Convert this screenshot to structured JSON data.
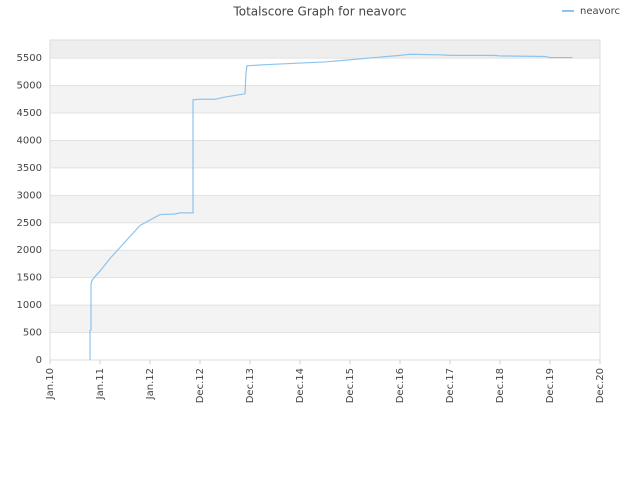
{
  "chart_data": {
    "type": "line",
    "title": "Totalscore Graph for neavorc",
    "series": [
      {
        "name": "neavorc",
        "color": "#8cc4ee",
        "x": [
          0.8,
          0.8,
          0.82,
          0.82,
          0.84,
          0.9,
          1.0,
          1.2,
          1.5,
          1.8,
          2.2,
          2.5,
          2.6,
          2.86,
          2.86,
          3.0,
          3.3,
          3.5,
          3.9,
          3.92,
          3.94,
          4.3,
          5.0,
          5.5,
          6.0,
          6.5,
          7.0,
          7.2,
          7.8,
          8.0,
          8.9,
          9.0,
          9.9,
          10.0,
          10.45
        ],
        "values": [
          0,
          530,
          550,
          1380,
          1450,
          1520,
          1620,
          1850,
          2150,
          2450,
          2650,
          2660,
          2680,
          2680,
          4740,
          4750,
          4750,
          4790,
          4850,
          5230,
          5360,
          5380,
          5410,
          5430,
          5470,
          5510,
          5550,
          5570,
          5560,
          5550,
          5550,
          5540,
          5530,
          5510,
          5510
        ]
      }
    ],
    "xlim": [
      0,
      11
    ],
    "xticks": [
      {
        "value": 0,
        "label": "Jan.10"
      },
      {
        "value": 1,
        "label": "Jan.11"
      },
      {
        "value": 2,
        "label": "Jan.12"
      },
      {
        "value": 3,
        "label": "Dec.12"
      },
      {
        "value": 4,
        "label": "Dec.13"
      },
      {
        "value": 5,
        "label": "Dec.14"
      },
      {
        "value": 6,
        "label": "Dec.15"
      },
      {
        "value": 7,
        "label": "Dec.16"
      },
      {
        "value": 8,
        "label": "Dec.17"
      },
      {
        "value": 9,
        "label": "Dec.18"
      },
      {
        "value": 10,
        "label": "Dec.19"
      },
      {
        "value": 11,
        "label": "Dec.20"
      }
    ],
    "ylim": [
      0,
      5830
    ],
    "yticks": [
      0,
      500,
      1000,
      1500,
      2000,
      2500,
      3000,
      3500,
      4000,
      4500,
      5000,
      5500
    ],
    "grid": true,
    "legend": "top-right"
  }
}
